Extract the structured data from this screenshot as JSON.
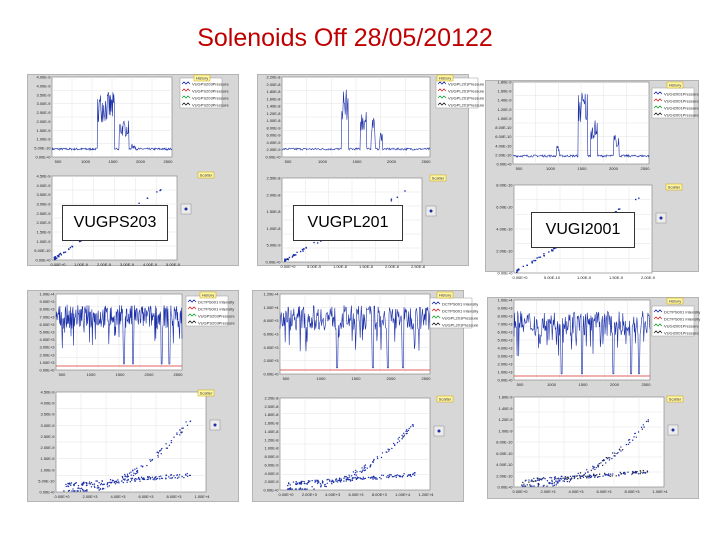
{
  "title": "Solenoids Off 28/05/20122",
  "callouts": [
    "VUGPS203",
    "VUGPL201",
    "VUGI2001"
  ],
  "tags": {
    "history": "History",
    "scatter": "Scatter"
  },
  "colors": {
    "series_blue": "#1a2ea8",
    "series_red": "#d8322a",
    "series_green": "#22a43a",
    "series_black": "#222222",
    "title": "#c00000"
  },
  "panels": [
    {
      "history_legend": [
        "VUGPS203Pressure",
        "VUGPS203Pressure",
        "VUGPS203Pressure",
        "VUGPS203Pressure"
      ],
      "history_y_ticks": [
        "4.00E-9",
        "4.00E-9",
        "3.50E-9",
        "3.00E-9",
        "2.50E-9",
        "2.00E-9",
        "1.50E-9",
        "1.00E-9",
        "5.00E-10",
        "0.00E+0"
      ],
      "history_x_ticks": [
        "500",
        "1000",
        "1500",
        "2000",
        "2500"
      ],
      "scatter_y_ticks": [
        "4.50E-9",
        "4.00E-9",
        "3.50E-9",
        "3.00E-9",
        "2.50E-9",
        "2.00E-9",
        "1.50E-9",
        "1.00E-9",
        "5.00E-10",
        "0.00E+0"
      ],
      "scatter_x_ticks": [
        "0.00E+0",
        "1.00E-9",
        "2.00E-9",
        "3.00E-9",
        "4.00E-9",
        "5.00E-9"
      ]
    },
    {
      "history_legend": [
        "VUGPL201Pressure",
        "VUGPL201Pressure",
        "VUGPL201Pressure",
        "VUGPL201Pressure"
      ],
      "history_y_ticks": [
        "2.20E-8",
        "2.00E-8",
        "1.80E-8",
        "1.60E-8",
        "1.40E-8",
        "1.20E-8",
        "1.00E-8",
        "8.00E-9",
        "6.00E-9",
        "4.00E-9",
        "2.00E-9",
        "0.00E+0"
      ],
      "history_x_ticks": [
        "500",
        "1000",
        "1500",
        "2000",
        "2500"
      ],
      "scatter_y_ticks": [
        "2.50E-8",
        "2.00E-8",
        "1.50E-8",
        "1.00E-8",
        "5.00E-9",
        "0.00E+0"
      ],
      "scatter_x_ticks": [
        "0.00E+0",
        "5.00E-9",
        "1.00E-8",
        "1.50E-8",
        "2.00E-8",
        "2.50E-8"
      ]
    },
    {
      "history_legend": [
        "VUGI2001Pressure",
        "VUGI2001Pressure",
        "VUGI2001Pressure",
        "VUGI2001Pressure"
      ],
      "history_y_ticks": [
        "1.80E-9",
        "1.60E-9",
        "1.40E-9",
        "1.20E-9",
        "1.00E-9",
        "8.00E-10",
        "6.00E-10",
        "4.00E-10",
        "2.00E-10",
        "0.00E+0"
      ],
      "history_x_ticks": [
        "500",
        "1000",
        "1500",
        "2000",
        "2500"
      ],
      "scatter_y_ticks": [
        "8.00E-10",
        "6.00E-10",
        "4.00E-10",
        "2.00E-10",
        "0.00E+0"
      ],
      "scatter_x_ticks": [
        "0.00E+0",
        "5.00E-10",
        "1.00E-9",
        "1.50E-9",
        "2.00E-9"
      ]
    },
    {
      "history_legend": [
        "DCTPS001 Intensity",
        "DCTPS001 Intensity",
        "VUGPS203Pressure",
        "VUGPS203Pressure"
      ],
      "history_y_ticks": [
        "1.00E+4",
        "9.00E+3",
        "8.00E+3",
        "7.00E+3",
        "6.00E+3",
        "5.00E+3",
        "4.00E+3",
        "3.00E+3",
        "2.00E+3",
        "1.00E+3",
        "0.00E+0"
      ],
      "history_x_ticks": [
        "500",
        "1000",
        "1500",
        "2000",
        "2500"
      ],
      "scatter_y_ticks": [
        "4.50E-9",
        "4.00E-9",
        "3.50E-9",
        "3.00E-9",
        "2.50E-9",
        "2.00E-9",
        "1.50E-9",
        "1.00E-9",
        "5.00E-10",
        "0.00E+0"
      ],
      "scatter_x_ticks": [
        "0.00E+0",
        "2.00E+3",
        "4.00E+3",
        "6.00E+3",
        "8.00E+3",
        "1.00E+4"
      ]
    },
    {
      "history_legend": [
        "DCTPS001 Intensity",
        "DCTPS001 Intensity",
        "VUGPL201Pressure",
        "VUGPL201Pressure"
      ],
      "history_y_ticks": [
        "1.20E+4",
        "1.00E+4",
        "8.00E+3",
        "6.00E+3",
        "4.00E+3",
        "2.00E+3",
        "0.00E+0"
      ],
      "history_x_ticks": [
        "500",
        "1000",
        "1500",
        "2000",
        "2500"
      ],
      "scatter_y_ticks": [
        "2.20E-8",
        "2.00E-8",
        "1.80E-8",
        "1.60E-8",
        "1.40E-8",
        "1.20E-8",
        "1.00E-8",
        "8.00E-9",
        "6.00E-9",
        "4.00E-9",
        "2.00E-9",
        "0.00E+0"
      ],
      "scatter_x_ticks": [
        "0.00E+0",
        "2.00E+3",
        "4.00E+3",
        "6.00E+3",
        "8.00E+3",
        "1.00E+4",
        "1.20E+4"
      ]
    },
    {
      "history_legend": [
        "DCTPS001 Intensity",
        "DCTPS001 Intensity",
        "VUGI2001Pressure",
        "VUGI2001Pressure"
      ],
      "history_y_ticks": [
        "1.00E+4",
        "9.00E+3",
        "8.00E+3",
        "7.00E+3",
        "6.00E+3",
        "5.00E+3",
        "4.00E+3",
        "3.00E+3",
        "2.00E+3",
        "1.00E+3",
        "0.00E+0"
      ],
      "history_x_ticks": [
        "500",
        "1000",
        "1500",
        "2000",
        "2500"
      ],
      "scatter_y_ticks": [
        "1.60E-9",
        "1.40E-9",
        "1.20E-9",
        "1.00E-9",
        "8.00E-10",
        "6.00E-10",
        "4.00E-10",
        "2.00E-10",
        "0.00E+0"
      ],
      "scatter_x_ticks": [
        "0.00E+0",
        "2.00E+3",
        "4.00E+3",
        "6.00E+3",
        "8.00E+3",
        "1.00E+4"
      ]
    }
  ],
  "chart_data": [
    {
      "type": "line",
      "panel": "top-left history",
      "series": [
        {
          "name": "VUGPS203Pressure",
          "values": [
            0.3,
            0.3,
            0.4,
            3.2,
            2.6,
            0.6,
            1.4,
            0.4,
            0.3,
            0.3
          ]
        }
      ],
      "x": [
        0,
        250,
        500,
        750,
        1000,
        1250,
        1500,
        1750,
        2000,
        2500
      ],
      "grid": true,
      "legend": "right"
    },
    {
      "type": "scatter",
      "panel": "top-left scatter",
      "series": [
        {
          "values": [
            [
              0.2,
              0.3
            ],
            [
              1.0,
              1.0
            ],
            [
              2.0,
              2.0
            ],
            [
              3.0,
              3.0
            ],
            [
              4.0,
              4.0
            ]
          ]
        }
      ],
      "grid": true
    },
    {
      "type": "line",
      "panel": "top-middle history",
      "series": [
        {
          "name": "VUGPL201Pressure",
          "values": [
            1.0,
            1.0,
            1.2,
            14.0,
            1.2,
            10.0,
            1.0,
            1.0,
            1.0
          ]
        }
      ],
      "x": [
        0,
        300,
        600,
        900,
        1100,
        1300,
        1600,
        2000,
        2500
      ],
      "grid": true,
      "legend": "right"
    },
    {
      "type": "scatter",
      "panel": "top-middle scatter",
      "series": [
        {
          "values": [
            [
              0.1,
              0.1
            ],
            [
              5,
              5
            ],
            [
              10,
              10
            ],
            [
              15,
              15
            ],
            [
              20,
              20
            ]
          ]
        }
      ],
      "grid": true
    },
    {
      "type": "line",
      "panel": "top-right history",
      "series": [
        {
          "name": "VUGI2001Pressure",
          "values": [
            0.2,
            0.2,
            0.3,
            1.6,
            0.4,
            1.2,
            0.2,
            0.2
          ]
        }
      ],
      "x": [
        0,
        400,
        800,
        1100,
        1300,
        1500,
        2000,
        2500
      ],
      "grid": true,
      "legend": "right"
    },
    {
      "type": "scatter",
      "panel": "top-right scatter",
      "series": [
        {
          "values": [
            [
              0.05,
              0.05
            ],
            [
              0.5,
              0.2
            ],
            [
              1.0,
              0.4
            ],
            [
              1.5,
              0.6
            ],
            [
              2.0,
              0.8
            ]
          ]
        }
      ],
      "grid": true
    },
    {
      "type": "line",
      "panel": "bottom-left history",
      "series": [
        {
          "name": "DCTPS001 Intensity",
          "values": [
            7000,
            8500,
            6000,
            8000,
            2500,
            8500,
            7000,
            8000,
            6500,
            8000
          ]
        },
        {
          "name": "VUGPS203Pressure",
          "values": [
            0,
            0,
            0,
            0,
            0,
            0,
            0,
            0,
            0,
            0
          ]
        }
      ],
      "x": [
        0,
        250,
        500,
        750,
        1000,
        1250,
        1500,
        1750,
        2000,
        2500
      ],
      "grid": true,
      "legend": "right"
    },
    {
      "type": "scatter",
      "panel": "bottom-left scatter",
      "series": [
        {
          "values": [
            [
              1000,
              0.3
            ],
            [
              3000,
              0.6
            ],
            [
              5000,
              1.2
            ],
            [
              7000,
              2.5
            ],
            [
              9000,
              4.2
            ]
          ]
        }
      ],
      "grid": true
    },
    {
      "type": "line",
      "panel": "bottom-middle history",
      "series": [
        {
          "name": "DCTPS001 Intensity",
          "values": [
            9000,
            10000,
            9500,
            10000,
            4000,
            9500,
            10000,
            9000,
            2500,
            9500
          ]
        },
        {
          "name": "VUGPL201Pressure",
          "values": [
            0,
            0,
            0,
            0,
            0,
            0,
            0,
            0,
            0,
            0
          ]
        }
      ],
      "x": [
        0,
        250,
        500,
        750,
        1000,
        1250,
        1500,
        1750,
        2000,
        2500
      ],
      "grid": true,
      "legend": "right"
    },
    {
      "type": "scatter",
      "panel": "bottom-middle scatter",
      "series": [
        {
          "values": [
            [
              2000,
              1
            ],
            [
              5000,
              3
            ],
            [
              8000,
              8
            ],
            [
              10000,
              14
            ],
            [
              11500,
              21
            ]
          ]
        }
      ],
      "grid": true
    },
    {
      "type": "line",
      "panel": "bottom-right history",
      "series": [
        {
          "name": "DCTPS001 Intensity",
          "values": [
            7500,
            8500,
            7000,
            8000,
            6500,
            8500,
            7500,
            8000,
            3000,
            8000
          ]
        },
        {
          "name": "VUGI2001Pressure",
          "values": [
            0,
            0,
            0,
            0,
            0,
            0,
            0,
            0,
            0,
            0
          ]
        }
      ],
      "x": [
        0,
        250,
        500,
        750,
        1000,
        1250,
        1500,
        1750,
        2000,
        2500
      ],
      "grid": true,
      "legend": "right"
    },
    {
      "type": "scatter",
      "panel": "bottom-right scatter",
      "series": [
        {
          "values": [
            [
              2000,
              0.05
            ],
            [
              5000,
              0.15
            ],
            [
              7000,
              0.4
            ],
            [
              8500,
              0.9
            ],
            [
              9500,
              1.4
            ]
          ]
        }
      ],
      "grid": true
    }
  ]
}
